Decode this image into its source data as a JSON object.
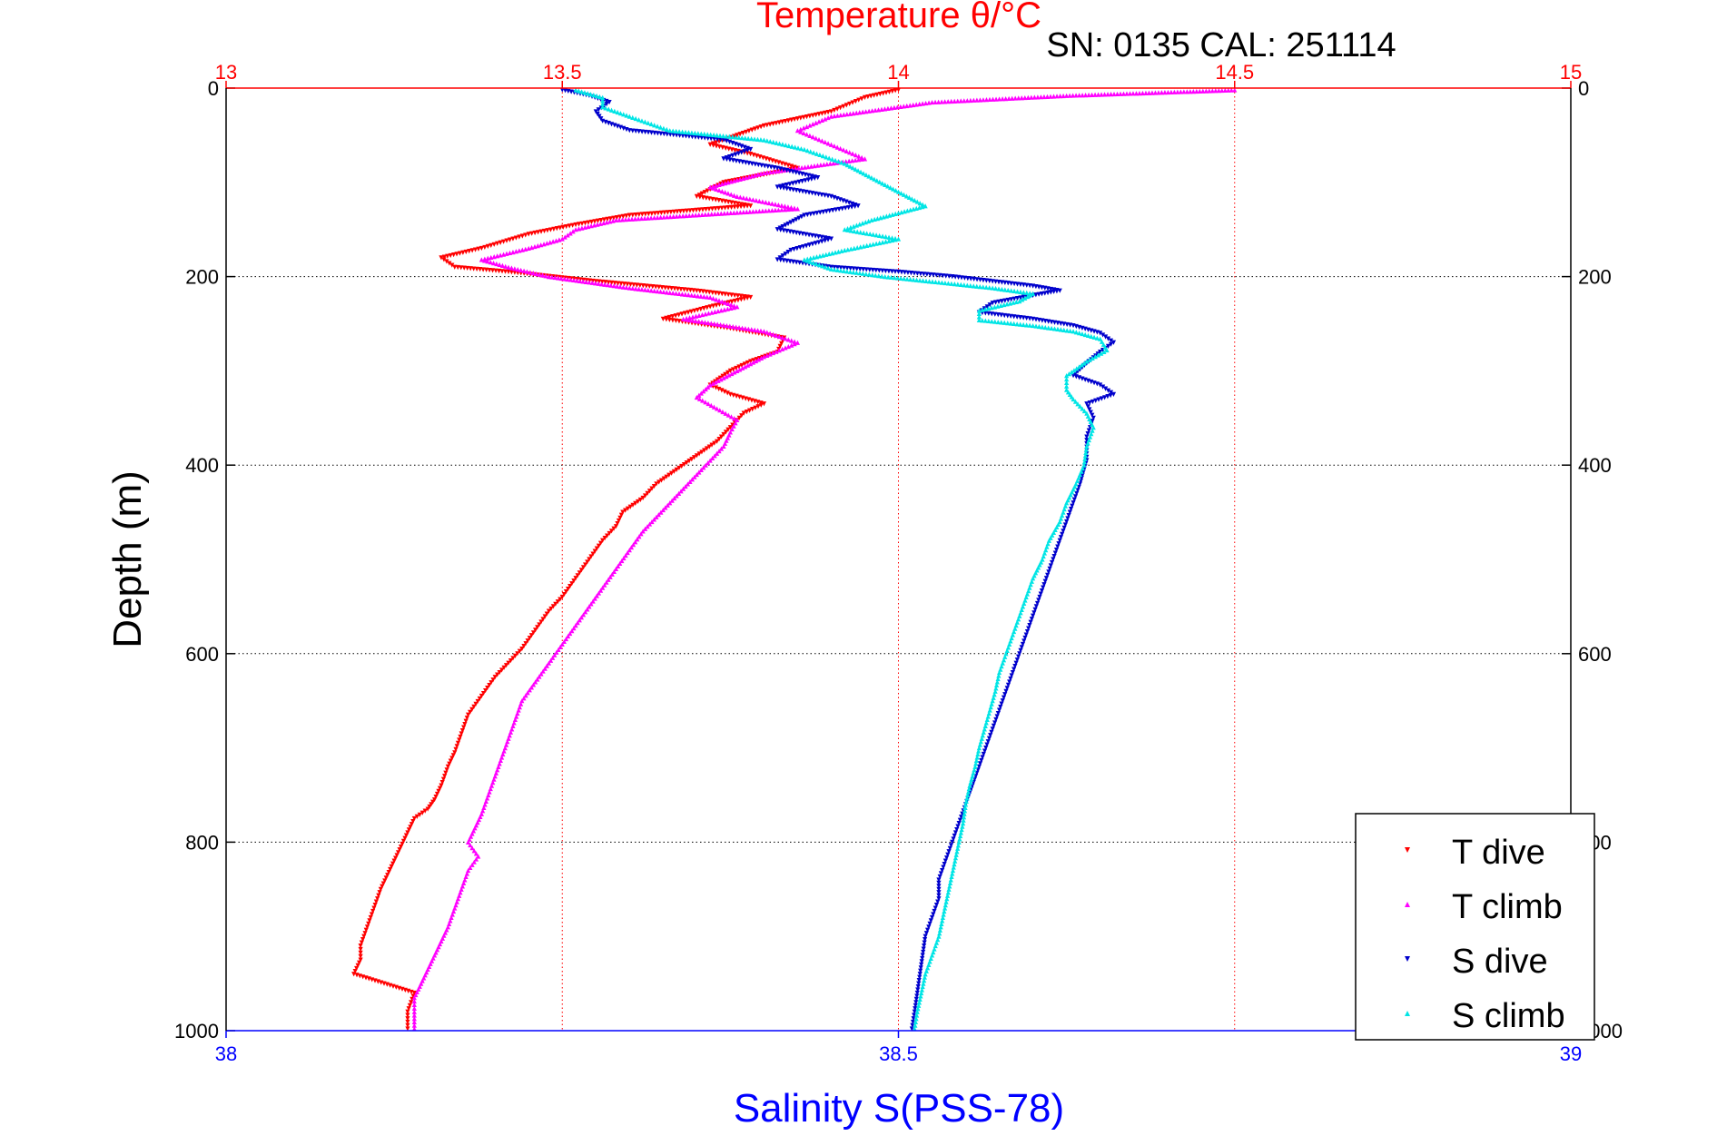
{
  "chart_data": {
    "type": "scatter",
    "title": "Temperature θ/°C",
    "subtitle": "SN: 0135  CAL: 251114",
    "ylabel": "Depth (m)",
    "xlabel": "Salinity S(PSS-78)",
    "temperature_axis": {
      "range": [
        13,
        15
      ],
      "ticks": [
        "13",
        "13.5",
        "14",
        "14.5",
        "15"
      ],
      "color": "#ff0000"
    },
    "salinity_axis": {
      "range": [
        38,
        39
      ],
      "ticks": [
        "38",
        "38.5",
        "39"
      ],
      "color": "#0000ff"
    },
    "depth_axis": {
      "range": [
        0,
        1000
      ],
      "reversed": true,
      "ticks": [
        "0",
        "200",
        "400",
        "600",
        "800",
        "1000"
      ]
    },
    "grid": true,
    "legend_position": "bottom-right",
    "series": [
      {
        "name": "T dive",
        "axis": "temperature",
        "color": "#ff0000",
        "marker": "triangle-down",
        "points": [
          [
            14.0,
            2
          ],
          [
            13.95,
            10
          ],
          [
            13.9,
            25
          ],
          [
            13.8,
            40
          ],
          [
            13.76,
            50
          ],
          [
            13.72,
            60
          ],
          [
            13.78,
            70
          ],
          [
            13.85,
            85
          ],
          [
            13.74,
            100
          ],
          [
            13.7,
            115
          ],
          [
            13.78,
            125
          ],
          [
            13.6,
            135
          ],
          [
            13.52,
            145
          ],
          [
            13.45,
            155
          ],
          [
            13.38,
            170
          ],
          [
            13.32,
            180
          ],
          [
            13.34,
            190
          ],
          [
            13.42,
            195
          ],
          [
            13.55,
            205
          ],
          [
            13.7,
            215
          ],
          [
            13.78,
            222
          ],
          [
            13.72,
            232
          ],
          [
            13.65,
            245
          ],
          [
            13.75,
            255
          ],
          [
            13.83,
            265
          ],
          [
            13.82,
            280
          ],
          [
            13.78,
            290
          ],
          [
            13.75,
            300
          ],
          [
            13.72,
            315
          ],
          [
            13.75,
            325
          ],
          [
            13.8,
            335
          ],
          [
            13.77,
            345
          ],
          [
            13.75,
            360
          ],
          [
            13.73,
            375
          ],
          [
            13.7,
            390
          ],
          [
            13.67,
            405
          ],
          [
            13.64,
            420
          ],
          [
            13.62,
            435
          ],
          [
            13.59,
            450
          ],
          [
            13.58,
            465
          ],
          [
            13.56,
            480
          ],
          [
            13.54,
            500
          ],
          [
            13.52,
            520
          ],
          [
            13.5,
            540
          ],
          [
            13.48,
            555
          ],
          [
            13.46,
            575
          ],
          [
            13.44,
            595
          ],
          [
            13.42,
            610
          ],
          [
            13.4,
            625
          ],
          [
            13.38,
            645
          ],
          [
            13.36,
            665
          ],
          [
            13.35,
            685
          ],
          [
            13.34,
            705
          ],
          [
            13.33,
            720
          ],
          [
            13.32,
            740
          ],
          [
            13.31,
            755
          ],
          [
            13.3,
            765
          ],
          [
            13.28,
            775
          ],
          [
            13.27,
            790
          ],
          [
            13.26,
            805
          ],
          [
            13.25,
            820
          ],
          [
            13.24,
            835
          ],
          [
            13.23,
            850
          ],
          [
            13.22,
            870
          ],
          [
            13.21,
            890
          ],
          [
            13.2,
            910
          ],
          [
            13.2,
            925
          ],
          [
            13.19,
            940
          ],
          [
            13.28,
            960
          ],
          [
            13.27,
            980
          ],
          [
            13.27,
            998
          ]
        ]
      },
      {
        "name": "T climb",
        "axis": "temperature",
        "color": "#ff00ff",
        "marker": "triangle-up",
        "points": [
          [
            14.5,
            2
          ],
          [
            14.25,
            8
          ],
          [
            14.05,
            15
          ],
          [
            13.9,
            30
          ],
          [
            13.85,
            45
          ],
          [
            13.9,
            60
          ],
          [
            13.95,
            75
          ],
          [
            13.8,
            90
          ],
          [
            13.72,
            105
          ],
          [
            13.76,
            115
          ],
          [
            13.85,
            128
          ],
          [
            13.58,
            140
          ],
          [
            13.52,
            150
          ],
          [
            13.5,
            160
          ],
          [
            13.45,
            170
          ],
          [
            13.38,
            182
          ],
          [
            13.42,
            190
          ],
          [
            13.48,
            200
          ],
          [
            13.6,
            212
          ],
          [
            13.72,
            222
          ],
          [
            13.76,
            232
          ],
          [
            13.68,
            245
          ],
          [
            13.8,
            258
          ],
          [
            13.85,
            270
          ],
          [
            13.8,
            285
          ],
          [
            13.76,
            300
          ],
          [
            13.72,
            315
          ],
          [
            13.7,
            328
          ],
          [
            13.73,
            340
          ],
          [
            13.76,
            352
          ],
          [
            13.75,
            365
          ],
          [
            13.74,
            380
          ],
          [
            13.72,
            395
          ],
          [
            13.7,
            410
          ],
          [
            13.68,
            425
          ],
          [
            13.66,
            440
          ],
          [
            13.64,
            455
          ],
          [
            13.62,
            470
          ],
          [
            13.6,
            490
          ],
          [
            13.58,
            510
          ],
          [
            13.56,
            530
          ],
          [
            13.54,
            550
          ],
          [
            13.52,
            570
          ],
          [
            13.5,
            590
          ],
          [
            13.48,
            610
          ],
          [
            13.46,
            630
          ],
          [
            13.44,
            650
          ],
          [
            13.43,
            670
          ],
          [
            13.42,
            690
          ],
          [
            13.41,
            710
          ],
          [
            13.4,
            730
          ],
          [
            13.39,
            750
          ],
          [
            13.38,
            770
          ],
          [
            13.37,
            785
          ],
          [
            13.36,
            800
          ],
          [
            13.375,
            815
          ],
          [
            13.36,
            830
          ],
          [
            13.35,
            850
          ],
          [
            13.34,
            870
          ],
          [
            13.33,
            890
          ],
          [
            13.32,
            905
          ],
          [
            13.31,
            920
          ],
          [
            13.3,
            935
          ],
          [
            13.29,
            950
          ],
          [
            13.28,
            965
          ],
          [
            13.28,
            980
          ],
          [
            13.28,
            998
          ]
        ]
      },
      {
        "name": "S dive",
        "axis": "salinity",
        "color": "#0000cc",
        "marker": "triangle-down",
        "points": [
          [
            38.25,
            2
          ],
          [
            38.27,
            8
          ],
          [
            38.285,
            15
          ],
          [
            38.275,
            25
          ],
          [
            38.28,
            35
          ],
          [
            38.3,
            45
          ],
          [
            38.37,
            55
          ],
          [
            38.39,
            65
          ],
          [
            38.37,
            75
          ],
          [
            38.41,
            85
          ],
          [
            38.44,
            95
          ],
          [
            38.41,
            105
          ],
          [
            38.45,
            115
          ],
          [
            38.47,
            125
          ],
          [
            38.43,
            135
          ],
          [
            38.41,
            150
          ],
          [
            38.45,
            160
          ],
          [
            38.42,
            172
          ],
          [
            38.41,
            182
          ],
          [
            38.45,
            190
          ],
          [
            38.5,
            195
          ],
          [
            38.54,
            200
          ],
          [
            38.57,
            205
          ],
          [
            38.6,
            210
          ],
          [
            38.62,
            215
          ],
          [
            38.6,
            220
          ],
          [
            38.57,
            228
          ],
          [
            38.56,
            238
          ],
          [
            38.6,
            245
          ],
          [
            38.63,
            252
          ],
          [
            38.65,
            260
          ],
          [
            38.66,
            270
          ],
          [
            38.65,
            280
          ],
          [
            38.64,
            292
          ],
          [
            38.63,
            305
          ],
          [
            38.65,
            315
          ],
          [
            38.66,
            325
          ],
          [
            38.64,
            335
          ],
          [
            38.645,
            350
          ],
          [
            38.64,
            370
          ],
          [
            38.64,
            395
          ],
          [
            38.635,
            420
          ],
          [
            38.63,
            440
          ],
          [
            38.625,
            460
          ],
          [
            38.62,
            480
          ],
          [
            38.615,
            500
          ],
          [
            38.61,
            520
          ],
          [
            38.605,
            540
          ],
          [
            38.6,
            560
          ],
          [
            38.595,
            580
          ],
          [
            38.59,
            600
          ],
          [
            38.585,
            620
          ],
          [
            38.58,
            640
          ],
          [
            38.575,
            660
          ],
          [
            38.57,
            680
          ],
          [
            38.565,
            700
          ],
          [
            38.56,
            720
          ],
          [
            38.555,
            740
          ],
          [
            38.55,
            760
          ],
          [
            38.545,
            780
          ],
          [
            38.54,
            800
          ],
          [
            38.535,
            820
          ],
          [
            38.53,
            840
          ],
          [
            38.53,
            860
          ],
          [
            38.525,
            880
          ],
          [
            38.52,
            900
          ],
          [
            38.518,
            920
          ],
          [
            38.516,
            940
          ],
          [
            38.514,
            960
          ],
          [
            38.512,
            980
          ],
          [
            38.51,
            998
          ]
        ]
      },
      {
        "name": "S climb",
        "axis": "salinity",
        "color": "#00e5e5",
        "marker": "triangle-up",
        "points": [
          [
            38.26,
            2
          ],
          [
            38.28,
            10
          ],
          [
            38.28,
            20
          ],
          [
            38.3,
            30
          ],
          [
            38.33,
            45
          ],
          [
            38.4,
            55
          ],
          [
            38.43,
            65
          ],
          [
            38.46,
            80
          ],
          [
            38.48,
            95
          ],
          [
            38.5,
            110
          ],
          [
            38.52,
            125
          ],
          [
            38.48,
            140
          ],
          [
            38.46,
            150
          ],
          [
            38.5,
            160
          ],
          [
            38.46,
            172
          ],
          [
            38.43,
            182
          ],
          [
            38.45,
            192
          ],
          [
            38.49,
            200
          ],
          [
            38.53,
            206
          ],
          [
            38.57,
            212
          ],
          [
            38.6,
            218
          ],
          [
            38.59,
            226
          ],
          [
            38.56,
            236
          ],
          [
            38.56,
            246
          ],
          [
            38.6,
            252
          ],
          [
            38.63,
            258
          ],
          [
            38.65,
            266
          ],
          [
            38.655,
            278
          ],
          [
            38.64,
            290
          ],
          [
            38.625,
            305
          ],
          [
            38.625,
            320
          ],
          [
            38.63,
            330
          ],
          [
            38.64,
            345
          ],
          [
            38.645,
            360
          ],
          [
            38.64,
            380
          ],
          [
            38.638,
            400
          ],
          [
            38.632,
            420
          ],
          [
            38.625,
            440
          ],
          [
            38.62,
            460
          ],
          [
            38.612,
            480
          ],
          [
            38.607,
            500
          ],
          [
            38.6,
            520
          ],
          [
            38.595,
            540
          ],
          [
            38.59,
            560
          ],
          [
            38.585,
            580
          ],
          [
            38.58,
            600
          ],
          [
            38.575,
            620
          ],
          [
            38.572,
            640
          ],
          [
            38.568,
            660
          ],
          [
            38.564,
            680
          ],
          [
            38.56,
            700
          ],
          [
            38.557,
            720
          ],
          [
            38.553,
            740
          ],
          [
            38.55,
            760
          ],
          [
            38.548,
            780
          ],
          [
            38.545,
            800
          ],
          [
            38.542,
            820
          ],
          [
            38.539,
            840
          ],
          [
            38.536,
            860
          ],
          [
            38.533,
            880
          ],
          [
            38.53,
            900
          ],
          [
            38.525,
            920
          ],
          [
            38.52,
            940
          ],
          [
            38.517,
            960
          ],
          [
            38.514,
            980
          ],
          [
            38.512,
            998
          ]
        ]
      }
    ]
  }
}
